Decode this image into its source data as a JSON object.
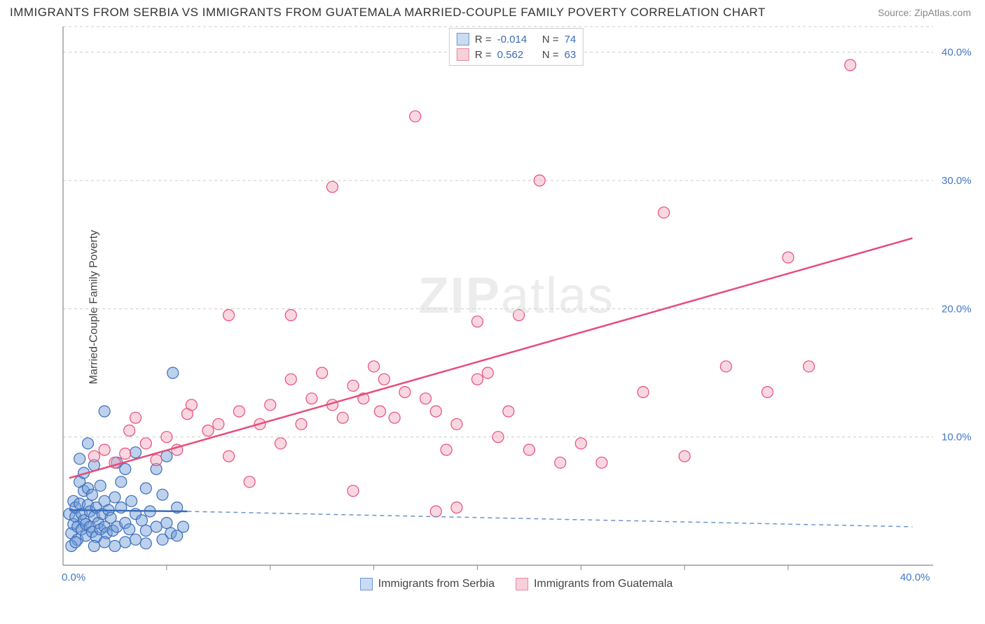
{
  "title": "IMMIGRANTS FROM SERBIA VS IMMIGRANTS FROM GUATEMALA MARRIED-COUPLE FAMILY POVERTY CORRELATION CHART",
  "source": "Source: ZipAtlas.com",
  "ylabel": "Married-Couple Family Poverty",
  "watermark_bold": "ZIP",
  "watermark_rest": "atlas",
  "legend_top": [
    {
      "r_label": "R =",
      "r_val": "-0.014",
      "n_label": "N =",
      "n_val": "74",
      "fill": "#c9dcf2",
      "stroke": "#6c98d6"
    },
    {
      "r_label": "R =",
      "r_val": "0.562",
      "n_label": "N =",
      "n_val": "63",
      "fill": "#f8d0da",
      "stroke": "#e58aa5"
    }
  ],
  "legend_bottom": [
    {
      "label": "Immigrants from Serbia",
      "fill": "#c9dcf2",
      "stroke": "#6c98d6"
    },
    {
      "label": "Immigrants from Guatemala",
      "fill": "#f8d0da",
      "stroke": "#e58aa5"
    }
  ],
  "chart": {
    "type": "scatter",
    "xlim": [
      0,
      42
    ],
    "ylim": [
      0,
      42
    ],
    "x_ticks_major": [
      0,
      40
    ],
    "x_ticks_minor": [
      5,
      10,
      15,
      20,
      25,
      30,
      35
    ],
    "y_ticks_major": [
      10,
      20,
      30,
      40
    ],
    "x_tick_labels": {
      "0": "0.0%",
      "40": "40.0%"
    },
    "y_tick_labels": {
      "10": "10.0%",
      "20": "20.0%",
      "30": "30.0%",
      "40": "40.0%"
    },
    "background_color": "#ffffff",
    "grid_color": "#cccccc",
    "axis_color": "#888888",
    "tick_label_color": "#4478c8",
    "marker_radius": 8,
    "marker_opacity": 0.45,
    "series": [
      {
        "name": "serbia",
        "fill": "#6c98d6",
        "stroke": "#3b6db8",
        "trend": {
          "x1": 0.3,
          "y1": 4.3,
          "x2": 6.0,
          "y2": 4.2,
          "dash_x2": 41,
          "dash_y2": 3.0
        },
        "points": [
          [
            0.3,
            4.0
          ],
          [
            0.4,
            2.5
          ],
          [
            0.5,
            3.2
          ],
          [
            0.5,
            5.0
          ],
          [
            0.6,
            3.8
          ],
          [
            0.6,
            4.5
          ],
          [
            0.7,
            2.0
          ],
          [
            0.7,
            3.0
          ],
          [
            0.8,
            4.8
          ],
          [
            0.8,
            6.5
          ],
          [
            0.8,
            8.3
          ],
          [
            0.9,
            2.8
          ],
          [
            0.9,
            4.0
          ],
          [
            1.0,
            3.5
          ],
          [
            1.0,
            5.8
          ],
          [
            1.0,
            7.2
          ],
          [
            1.1,
            2.3
          ],
          [
            1.1,
            3.2
          ],
          [
            1.2,
            4.7
          ],
          [
            1.2,
            6.0
          ],
          [
            1.2,
            9.5
          ],
          [
            1.3,
            3.0
          ],
          [
            1.3,
            4.2
          ],
          [
            1.4,
            2.6
          ],
          [
            1.4,
            5.5
          ],
          [
            1.5,
            3.8
          ],
          [
            1.5,
            7.8
          ],
          [
            1.6,
            2.2
          ],
          [
            1.6,
            4.5
          ],
          [
            1.7,
            3.3
          ],
          [
            1.8,
            2.8
          ],
          [
            1.8,
            6.2
          ],
          [
            1.9,
            4.0
          ],
          [
            2.0,
            3.0
          ],
          [
            2.0,
            5.0
          ],
          [
            2.0,
            12.0
          ],
          [
            2.1,
            2.5
          ],
          [
            2.2,
            4.3
          ],
          [
            2.3,
            3.7
          ],
          [
            2.4,
            2.7
          ],
          [
            2.5,
            5.3
          ],
          [
            2.6,
            3.0
          ],
          [
            2.6,
            8.0
          ],
          [
            2.8,
            4.5
          ],
          [
            2.8,
            6.5
          ],
          [
            3.0,
            3.3
          ],
          [
            3.0,
            7.5
          ],
          [
            3.2,
            2.8
          ],
          [
            3.3,
            5.0
          ],
          [
            3.5,
            4.0
          ],
          [
            3.5,
            8.8
          ],
          [
            3.8,
            3.5
          ],
          [
            4.0,
            2.7
          ],
          [
            4.0,
            6.0
          ],
          [
            4.2,
            4.2
          ],
          [
            4.5,
            3.0
          ],
          [
            4.5,
            7.5
          ],
          [
            4.8,
            5.5
          ],
          [
            5.0,
            3.3
          ],
          [
            5.0,
            8.5
          ],
          [
            5.2,
            2.5
          ],
          [
            5.3,
            15.0
          ],
          [
            5.5,
            4.5
          ],
          [
            5.8,
            3.0
          ],
          [
            0.4,
            1.5
          ],
          [
            0.6,
            1.8
          ],
          [
            1.5,
            1.5
          ],
          [
            2.0,
            1.8
          ],
          [
            2.5,
            1.5
          ],
          [
            3.0,
            1.8
          ],
          [
            3.5,
            2.0
          ],
          [
            4.0,
            1.7
          ],
          [
            4.8,
            2.0
          ],
          [
            5.5,
            2.3
          ]
        ]
      },
      {
        "name": "guatemala",
        "fill": "#f2a7bc",
        "stroke": "#e84c7a",
        "trend": {
          "x1": 0.3,
          "y1": 6.8,
          "x2": 41,
          "y2": 25.5
        },
        "points": [
          [
            1.5,
            8.5
          ],
          [
            2.0,
            9.0
          ],
          [
            2.5,
            8.0
          ],
          [
            3.0,
            8.7
          ],
          [
            3.2,
            10.5
          ],
          [
            3.5,
            11.5
          ],
          [
            4.0,
            9.5
          ],
          [
            4.5,
            8.2
          ],
          [
            5.0,
            10.0
          ],
          [
            5.5,
            9.0
          ],
          [
            6.0,
            11.8
          ],
          [
            6.2,
            12.5
          ],
          [
            7.0,
            10.5
          ],
          [
            7.5,
            11.0
          ],
          [
            8.0,
            8.5
          ],
          [
            8.0,
            19.5
          ],
          [
            8.5,
            12.0
          ],
          [
            9.0,
            6.5
          ],
          [
            9.5,
            11.0
          ],
          [
            10.0,
            12.5
          ],
          [
            10.5,
            9.5
          ],
          [
            11.0,
            14.5
          ],
          [
            11.0,
            19.5
          ],
          [
            11.5,
            11.0
          ],
          [
            12.0,
            13.0
          ],
          [
            12.5,
            15.0
          ],
          [
            13.0,
            12.5
          ],
          [
            13.0,
            29.5
          ],
          [
            13.5,
            11.5
          ],
          [
            14.0,
            14.0
          ],
          [
            14.0,
            5.8
          ],
          [
            14.5,
            13.0
          ],
          [
            15.0,
            15.5
          ],
          [
            15.3,
            12.0
          ],
          [
            15.5,
            14.5
          ],
          [
            16.0,
            11.5
          ],
          [
            16.5,
            13.5
          ],
          [
            17.0,
            35.0
          ],
          [
            17.5,
            13.0
          ],
          [
            18.0,
            12.0
          ],
          [
            18.0,
            4.2
          ],
          [
            18.5,
            9.0
          ],
          [
            19.0,
            11.0
          ],
          [
            19.0,
            4.5
          ],
          [
            20.0,
            14.5
          ],
          [
            20.0,
            19.0
          ],
          [
            20.5,
            15.0
          ],
          [
            21.0,
            10.0
          ],
          [
            22.0,
            19.5
          ],
          [
            22.5,
            9.0
          ],
          [
            23.0,
            30.0
          ],
          [
            24.0,
            8.0
          ],
          [
            25.0,
            9.5
          ],
          [
            26.0,
            8.0
          ],
          [
            28.0,
            13.5
          ],
          [
            29.0,
            27.5
          ],
          [
            30.0,
            8.5
          ],
          [
            32.0,
            15.5
          ],
          [
            34.0,
            13.5
          ],
          [
            35.0,
            24.0
          ],
          [
            36.0,
            15.5
          ],
          [
            38.0,
            39.0
          ],
          [
            21.5,
            12.0
          ]
        ]
      }
    ]
  }
}
